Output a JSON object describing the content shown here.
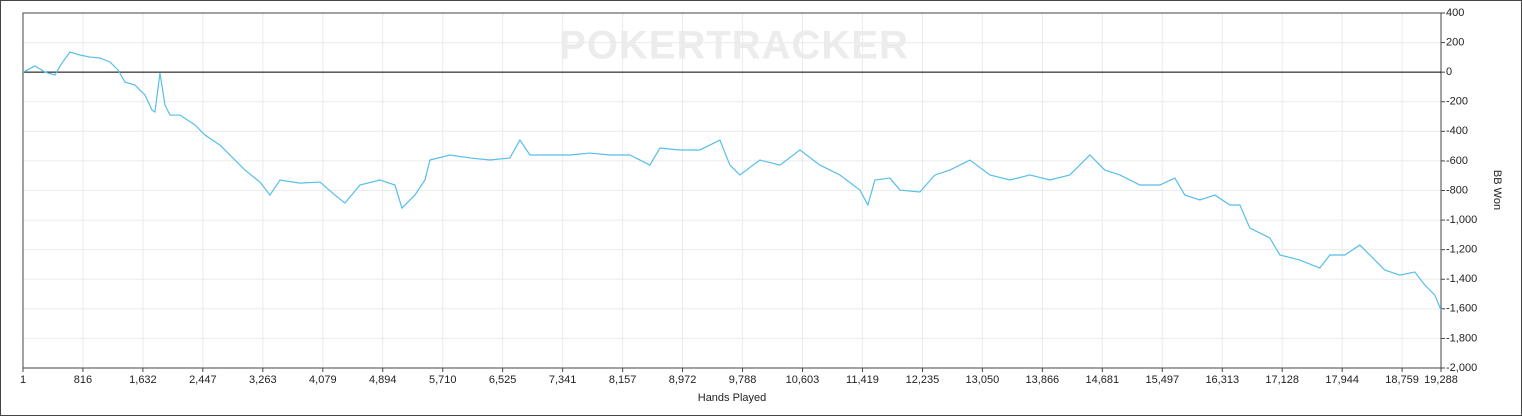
{
  "chart_data": {
    "type": "line",
    "watermark": "POKERTRACKER",
    "x_label": "Hands Played",
    "y_label": "BB Won",
    "grid": true,
    "xlim": [
      1,
      19288
    ],
    "ylim": [
      -2000,
      400
    ],
    "xticks": [
      1,
      816,
      {
        "value": 1632,
        "label": "1,632"
      },
      {
        "value": 2447,
        "label": "2,447"
      },
      {
        "value": 3263,
        "label": "3,263"
      },
      {
        "value": 4079,
        "label": "4,079"
      },
      {
        "value": 4894,
        "label": "4,894"
      },
      {
        "value": 5710,
        "label": "5,710"
      },
      {
        "value": 6525,
        "label": "6,525"
      },
      {
        "value": 7341,
        "label": "7,341"
      },
      {
        "value": 8157,
        "label": "8,157"
      },
      {
        "value": 8972,
        "label": "8,972"
      },
      {
        "value": 9788,
        "label": "9,788"
      },
      {
        "value": 10603,
        "label": "10,603"
      },
      {
        "value": 11419,
        "label": "11,419"
      },
      {
        "value": 12235,
        "label": "12,235"
      },
      {
        "value": 13050,
        "label": "13,050"
      },
      {
        "value": 13866,
        "label": "13,866"
      },
      {
        "value": 14681,
        "label": "14,681"
      },
      {
        "value": 15497,
        "label": "15,497"
      },
      {
        "value": 16313,
        "label": "16,313"
      },
      {
        "value": 17128,
        "label": "17,128"
      },
      {
        "value": 17944,
        "label": "17,944"
      },
      {
        "value": 18759,
        "label": "18,759"
      },
      {
        "value": 19288,
        "label": "19,288"
      }
    ],
    "yticks": [
      400,
      200,
      0,
      -200,
      -400,
      -600,
      -800,
      {
        "value": -1000,
        "label": "-1,000"
      },
      {
        "value": -1200,
        "label": "-1,200"
      },
      {
        "value": -1400,
        "label": "-1,400"
      },
      {
        "value": -1600,
        "label": "-1,600"
      },
      {
        "value": -1800,
        "label": "-1,800"
      },
      {
        "value": -2000,
        "label": "-2,000"
      }
    ],
    "series": [
      {
        "color": "#56bfea",
        "x": [
          1,
          164,
          300,
          436,
          531,
          640,
          776,
          912,
          1048,
          1184,
          1293,
          1388,
          1524,
          1660,
          1755,
          1796,
          1864,
          1932,
          2000,
          2136,
          2340,
          2476,
          2680,
          2884,
          3020,
          3224,
          3360,
          3496,
          3768,
          4040,
          4244,
          4380,
          4584,
          4856,
          5060,
          5155,
          5332,
          5468,
          5536,
          5808,
          6080,
          6352,
          6624,
          6760,
          6896,
          7168,
          7440,
          7712,
          7984,
          8256,
          8528,
          8664,
          8936,
          9208,
          9480,
          9616,
          9752,
          10024,
          10296,
          10568,
          10840,
          11112,
          11384,
          11493,
          11588,
          11792,
          11928,
          12200,
          12404,
          12608,
          12880,
          13152,
          13424,
          13696,
          13968,
          14240,
          14512,
          14716,
          14920,
          15192,
          15464,
          15668,
          15804,
          16008,
          16212,
          16416,
          16552,
          16688,
          16960,
          17096,
          17368,
          17640,
          17776,
          17980,
          18184,
          18320,
          18524,
          18728,
          18932,
          19068,
          19204,
          19288
        ],
        "values": [
          0,
          42,
          1,
          -19,
          62,
          136,
          116,
          102,
          96,
          69,
          15,
          -67,
          -87,
          -154,
          -256,
          -269,
          -6,
          -222,
          -290,
          -290,
          -357,
          -425,
          -493,
          -594,
          -662,
          -743,
          -831,
          -729,
          -750,
          -743,
          -831,
          -885,
          -763,
          -729,
          -763,
          -919,
          -831,
          -729,
          -594,
          -560,
          -580,
          -594,
          -580,
          -459,
          -560,
          -560,
          -560,
          -547,
          -560,
          -560,
          -628,
          -513,
          -526,
          -526,
          -459,
          -628,
          -695,
          -594,
          -628,
          -526,
          -628,
          -695,
          -797,
          -898,
          -729,
          -716,
          -797,
          -810,
          -695,
          -662,
          -594,
          -695,
          -729,
          -695,
          -729,
          -695,
          -560,
          -662,
          -695,
          -763,
          -763,
          -716,
          -831,
          -864,
          -831,
          -898,
          -898,
          -1054,
          -1121,
          -1236,
          -1270,
          -1324,
          -1236,
          -1236,
          -1169,
          -1236,
          -1338,
          -1372,
          -1351,
          -1439,
          -1507,
          -1608
        ]
      }
    ]
  }
}
